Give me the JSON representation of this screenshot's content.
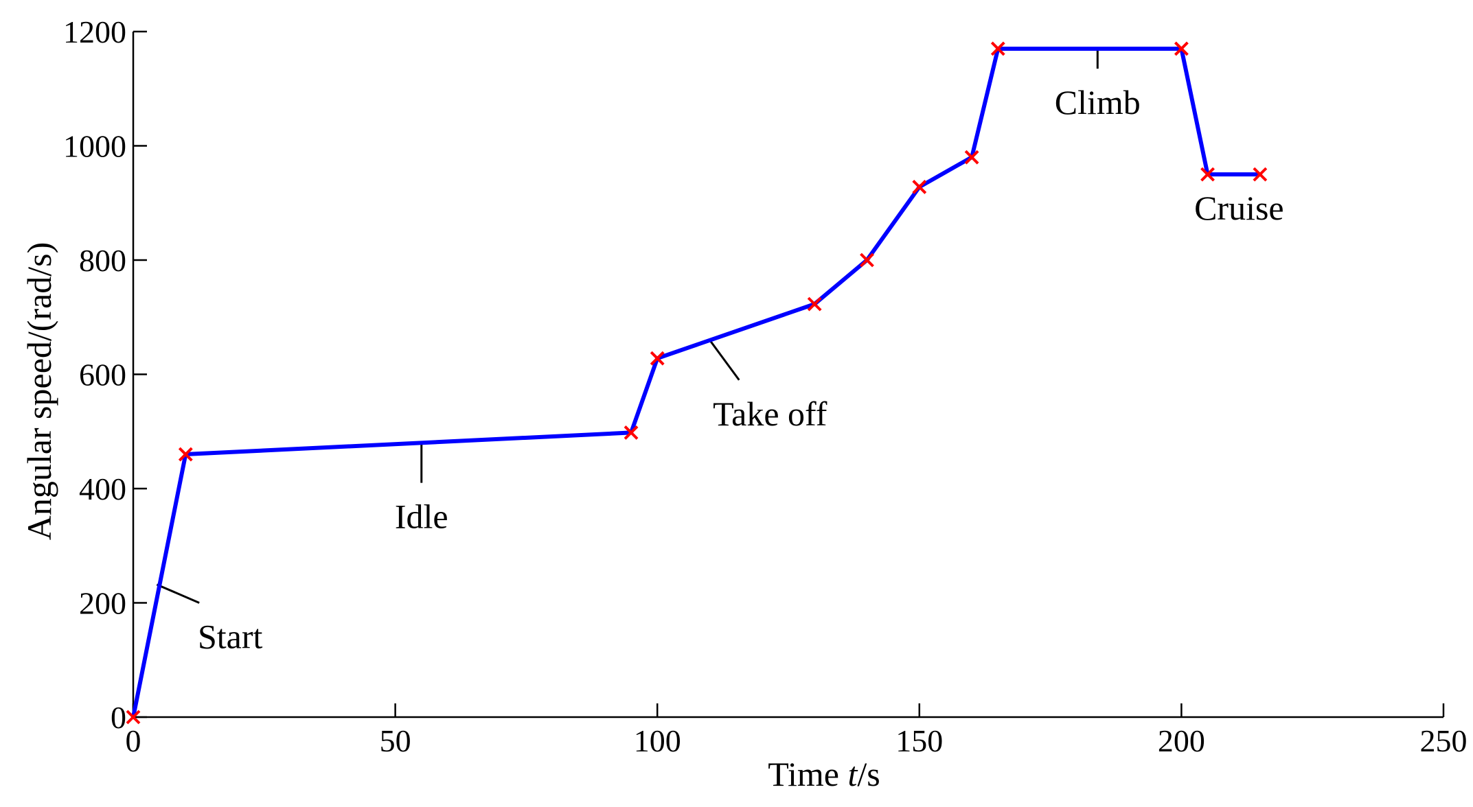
{
  "chart_data": {
    "type": "line",
    "xlabel_prefix": "Time ",
    "xlabel_var": "t",
    "xlabel_suffix": "/s",
    "ylabel": "Angular speed/(rad/s)",
    "xlim": [
      0,
      250
    ],
    "ylim": [
      0,
      1200
    ],
    "xticks": [
      0,
      50,
      100,
      150,
      200,
      250
    ],
    "yticks": [
      0,
      200,
      400,
      600,
      800,
      1000,
      1200
    ],
    "grid": false,
    "line_color": "#0000ff",
    "marker_color": "#ff0000",
    "marker": "x",
    "series": [
      {
        "x": [
          0,
          10,
          95,
          100,
          130,
          140,
          150,
          160,
          165,
          200,
          205,
          215
        ],
        "values": [
          0,
          460,
          498,
          628,
          723,
          800,
          928,
          980,
          1170,
          1170,
          950,
          950
        ]
      }
    ],
    "annotations": [
      {
        "text": "Start",
        "point": [
          4.5,
          232
        ],
        "label": [
          18.5,
          140
        ]
      },
      {
        "text": "Idle",
        "point": [
          55,
          482
        ],
        "label": [
          55,
          350
        ]
      },
      {
        "text": "Take off",
        "point": [
          110,
          660
        ],
        "label": [
          121.5,
          530
        ]
      },
      {
        "text": "Climb",
        "point": [
          184,
          1170
        ],
        "label": [
          184,
          1075
        ]
      },
      {
        "text": "Cruise",
        "point": [
          211,
          950
        ],
        "label": [
          211,
          890
        ]
      }
    ]
  }
}
